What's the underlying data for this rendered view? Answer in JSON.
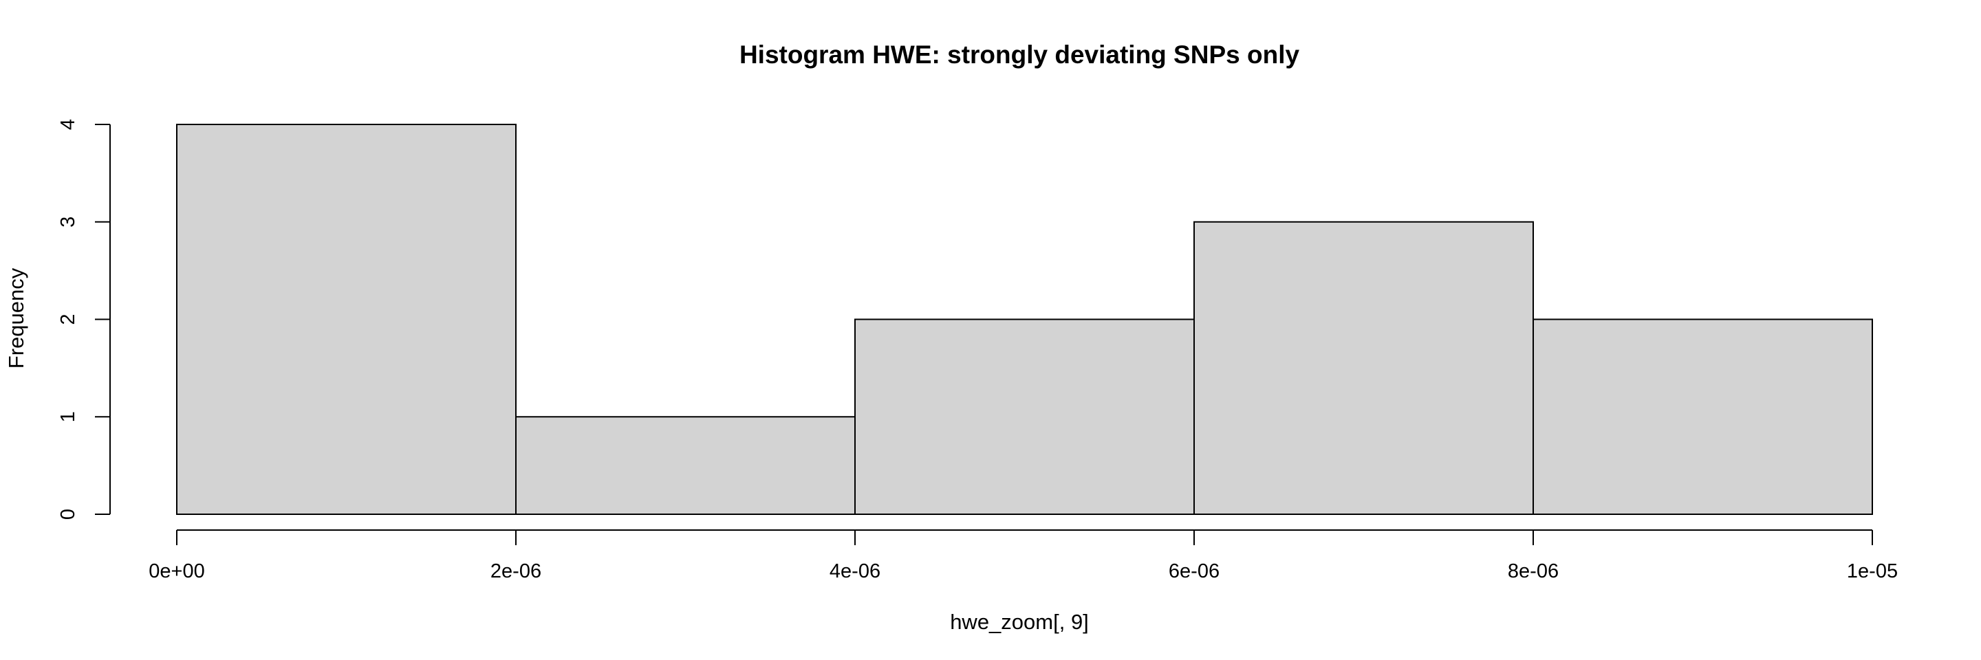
{
  "chart_data": {
    "type": "bar",
    "title": "Histogram HWE: strongly deviating SNPs only",
    "xlabel": "hwe_zoom[, 9]",
    "ylabel": "Frequency",
    "bins": [
      {
        "start": 0,
        "end": 2e-06,
        "count": 4
      },
      {
        "start": 2e-06,
        "end": 4e-06,
        "count": 1
      },
      {
        "start": 4e-06,
        "end": 6e-06,
        "count": 2
      },
      {
        "start": 6e-06,
        "end": 8e-06,
        "count": 3
      },
      {
        "start": 8e-06,
        "end": 1e-05,
        "count": 2
      }
    ],
    "xlim": [
      0,
      1e-05
    ],
    "ylim": [
      0,
      4
    ],
    "x_ticks": [
      0,
      2e-06,
      4e-06,
      6e-06,
      8e-06,
      1e-05
    ],
    "x_tick_labels": [
      "0e+00",
      "2e-06",
      "4e-06",
      "6e-06",
      "8e-06",
      "1e-05"
    ],
    "y_ticks": [
      0,
      1,
      2,
      3,
      4
    ],
    "y_tick_labels": [
      "0",
      "1",
      "2",
      "3",
      "4"
    ],
    "bar_color": "#d3d3d3",
    "grid": false,
    "legend": "none"
  }
}
